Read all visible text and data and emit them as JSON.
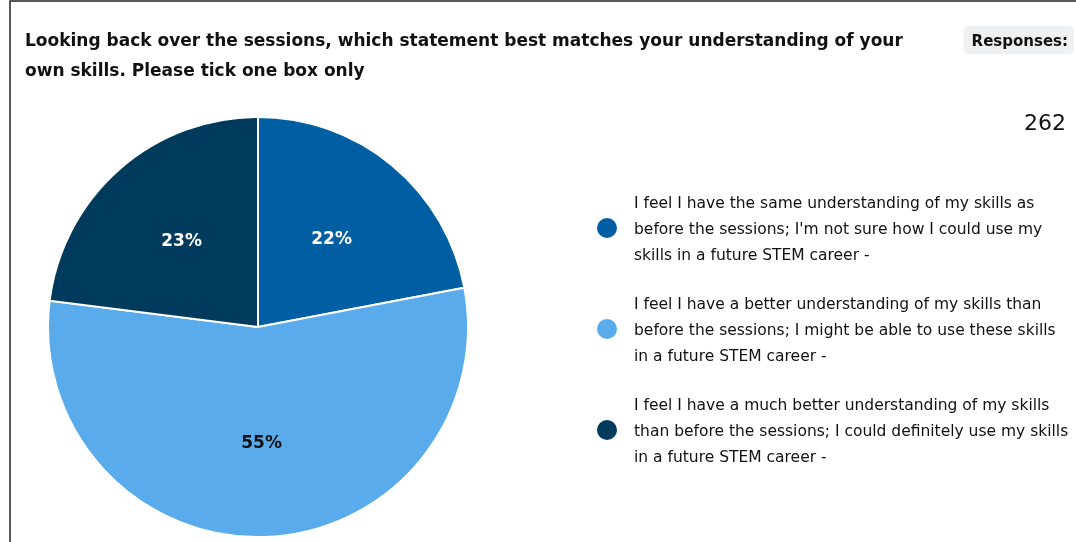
{
  "chart_data": {
    "type": "pie",
    "title": "Looking back over the sessions, which statement best matches your understanding of your own skills. Please tick one box only",
    "annotations": [
      "Responses:",
      "262"
    ],
    "categories": [
      "I feel I have the same understanding of my skills as before the sessions; I'm not sure how I could use my skills in a future STEM career -",
      "I feel I have a better understanding of my skills than before the sessions; I might be able to use these skills in a future STEM career -",
      "I feel I have a much better understanding of my skills than before the sessions; I could definitely use my skills in a future STEM career -"
    ],
    "values": [
      22,
      55,
      23
    ],
    "value_labels": [
      "22%",
      "55%",
      "23%"
    ],
    "colors": [
      "#005ea2",
      "#5aabeb",
      "#003a5c"
    ],
    "legend": "right"
  }
}
